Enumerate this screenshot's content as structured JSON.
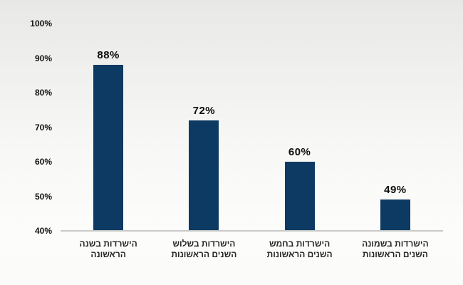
{
  "chart_data": {
    "type": "bar",
    "categories": [
      {
        "line1": "הישרדות בשנה",
        "line2": "הראשונה"
      },
      {
        "line1": "הישרדות בשלוש",
        "line2": "השנים הראשונות"
      },
      {
        "line1": "הישרדות בחמש",
        "line2": "השנים הראשונות"
      },
      {
        "line1": "הישרדות בשמונה",
        "line2": "השנים הראשונות"
      }
    ],
    "values": [
      88,
      72,
      60,
      49
    ],
    "value_labels": [
      "88%",
      "72%",
      "60%",
      "49%"
    ],
    "yticks": [
      "100%",
      "90%",
      "80%",
      "70%",
      "60%",
      "50%",
      "40%"
    ],
    "ylim": [
      40,
      100
    ],
    "grid": "off",
    "legend": "none",
    "bar_color": "#0d3a63",
    "axis_line_color": "#c9c9c9"
  }
}
